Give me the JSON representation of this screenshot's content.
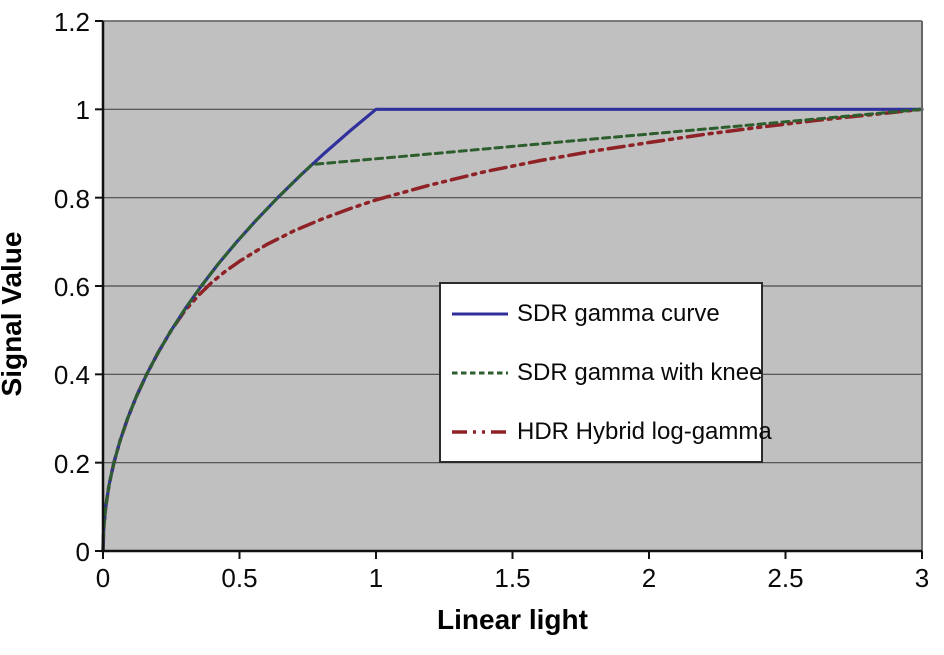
{
  "chart_data": {
    "type": "line",
    "title": "",
    "xlabel": "Linear light",
    "ylabel": "Signal Value",
    "xlim": [
      0,
      3
    ],
    "ylim": [
      0,
      1.2
    ],
    "x_ticks": [
      0,
      0.5,
      1,
      1.5,
      2,
      2.5,
      3
    ],
    "x_tick_labels": [
      "0",
      "0.5",
      "1",
      "1.5",
      "2",
      "2.5",
      "3"
    ],
    "y_ticks": [
      0,
      0.2,
      0.4,
      0.6,
      0.8,
      1,
      1.2
    ],
    "y_tick_labels": [
      "0",
      "0.2",
      "0.4",
      "0.6",
      "0.8",
      "1",
      "1.2"
    ],
    "grid": "horizontal-only",
    "plot_background": "#c0c0c0",
    "gridline_color": "#4a4a4a",
    "axis_color": "#111111",
    "legend_position": "center-right-inside",
    "series": [
      {
        "name": "SDR gamma curve",
        "color": "#30309c",
        "style": "solid",
        "points": [
          [
            0,
            0
          ],
          [
            0.0025,
            0.05
          ],
          [
            0.01,
            0.1
          ],
          [
            0.0225,
            0.15
          ],
          [
            0.04,
            0.2
          ],
          [
            0.0625,
            0.25
          ],
          [
            0.09,
            0.3
          ],
          [
            0.1225,
            0.35
          ],
          [
            0.16,
            0.4
          ],
          [
            0.2025,
            0.45
          ],
          [
            0.25,
            0.5
          ],
          [
            0.3025,
            0.55
          ],
          [
            0.36,
            0.6
          ],
          [
            0.4225,
            0.65
          ],
          [
            0.49,
            0.7
          ],
          [
            0.5625,
            0.75
          ],
          [
            0.64,
            0.8
          ],
          [
            0.7225,
            0.85
          ],
          [
            0.81,
            0.9
          ],
          [
            0.9025,
            0.95
          ],
          [
            1,
            1
          ],
          [
            3,
            1
          ]
        ]
      },
      {
        "name": "SDR gamma with knee",
        "color": "#2d5e2d",
        "style": "dashed",
        "points": [
          [
            0,
            0
          ],
          [
            0.0025,
            0.05
          ],
          [
            0.01,
            0.1
          ],
          [
            0.0225,
            0.15
          ],
          [
            0.04,
            0.2
          ],
          [
            0.0625,
            0.25
          ],
          [
            0.09,
            0.3
          ],
          [
            0.1225,
            0.35
          ],
          [
            0.16,
            0.4
          ],
          [
            0.2025,
            0.45
          ],
          [
            0.25,
            0.5
          ],
          [
            0.3025,
            0.55
          ],
          [
            0.36,
            0.6
          ],
          [
            0.4225,
            0.65
          ],
          [
            0.49,
            0.7
          ],
          [
            0.5625,
            0.75
          ],
          [
            0.64,
            0.8
          ],
          [
            0.7225,
            0.85
          ],
          [
            0.7656,
            0.875
          ],
          [
            1.2,
            0.899
          ],
          [
            1.8,
            0.933
          ],
          [
            2.4,
            0.966
          ],
          [
            3,
            1
          ]
        ]
      },
      {
        "name": "HDR Hybrid log-gamma",
        "color": "#8f2226",
        "style": "dash-dot-dot",
        "points": [
          [
            0,
            0
          ],
          [
            0.0025,
            0.05
          ],
          [
            0.01,
            0.1
          ],
          [
            0.0225,
            0.15
          ],
          [
            0.04,
            0.2
          ],
          [
            0.0625,
            0.25
          ],
          [
            0.09,
            0.3
          ],
          [
            0.1225,
            0.35
          ],
          [
            0.16,
            0.4
          ],
          [
            0.2025,
            0.45
          ],
          [
            0.25,
            0.5
          ],
          [
            0.3,
            0.544
          ],
          [
            0.35,
            0.579
          ],
          [
            0.4,
            0.609
          ],
          [
            0.45,
            0.634
          ],
          [
            0.5,
            0.656
          ],
          [
            0.6,
            0.694
          ],
          [
            0.7,
            0.725
          ],
          [
            0.8,
            0.751
          ],
          [
            0.9,
            0.774
          ],
          [
            1,
            0.795
          ],
          [
            1.2,
            0.829
          ],
          [
            1.4,
            0.859
          ],
          [
            1.6,
            0.884
          ],
          [
            1.8,
            0.906
          ],
          [
            2,
            0.925
          ],
          [
            2.2,
            0.943
          ],
          [
            2.4,
            0.959
          ],
          [
            2.6,
            0.974
          ],
          [
            2.8,
            0.987
          ],
          [
            3,
            1
          ]
        ]
      }
    ]
  }
}
